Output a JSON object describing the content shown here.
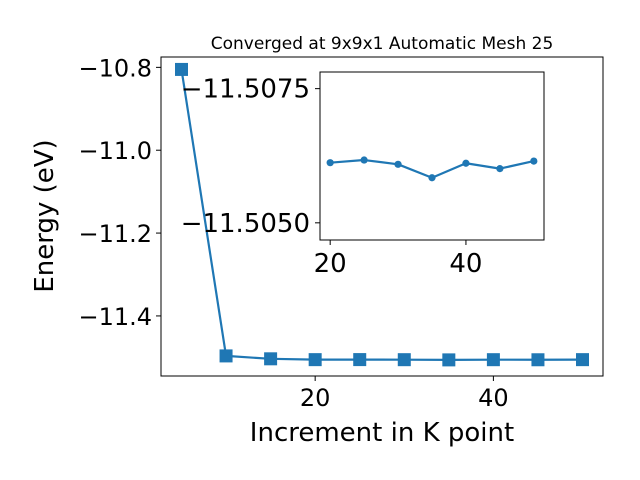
{
  "chart_data": [
    {
      "type": "line",
      "title": "Converged at 9x9x1 Automatic Mesh 25",
      "xlabel": "Increment in K point",
      "ylabel": "Energy (eV)",
      "marker": "square",
      "color": "#1f77b4",
      "xlim": [
        2.7,
        52.3
      ],
      "ylim": [
        -11.545,
        -10.775
      ],
      "xticks": [
        20,
        40
      ],
      "xtick_labels": [
        "20",
        "40"
      ],
      "yticks": [
        -10.8,
        -11.0,
        -11.2,
        -11.4
      ],
      "ytick_labels": [
        "−10.8",
        "−11.0",
        "−11.2",
        "−11.4"
      ],
      "x": [
        5,
        10,
        15,
        20,
        25,
        30,
        35,
        40,
        45,
        50
      ],
      "y": [
        -10.805,
        -11.4965,
        -11.5035,
        -11.5055,
        -11.5054,
        -11.5056,
        -11.5061,
        -11.5056,
        -11.5058,
        -11.5055
      ]
    },
    {
      "type": "line",
      "title": "",
      "xlabel": "",
      "ylabel": "",
      "marker": "circle",
      "color": "#1f77b4",
      "xlim": [
        18.5,
        51.5
      ],
      "ylim": [
        -11.50468,
        -11.50781
      ],
      "xticks": [
        20,
        40
      ],
      "xtick_labels": [
        "20",
        "40"
      ],
      "yticks": [
        -11.5075,
        -11.505
      ],
      "ytick_labels": [
        "−11.5075",
        "−11.5050"
      ],
      "x": [
        20,
        25,
        30,
        35,
        40,
        45,
        50
      ],
      "y": [
        -11.50612,
        -11.50617,
        -11.50609,
        -11.50584,
        -11.50611,
        -11.50601,
        -11.50615
      ]
    }
  ]
}
